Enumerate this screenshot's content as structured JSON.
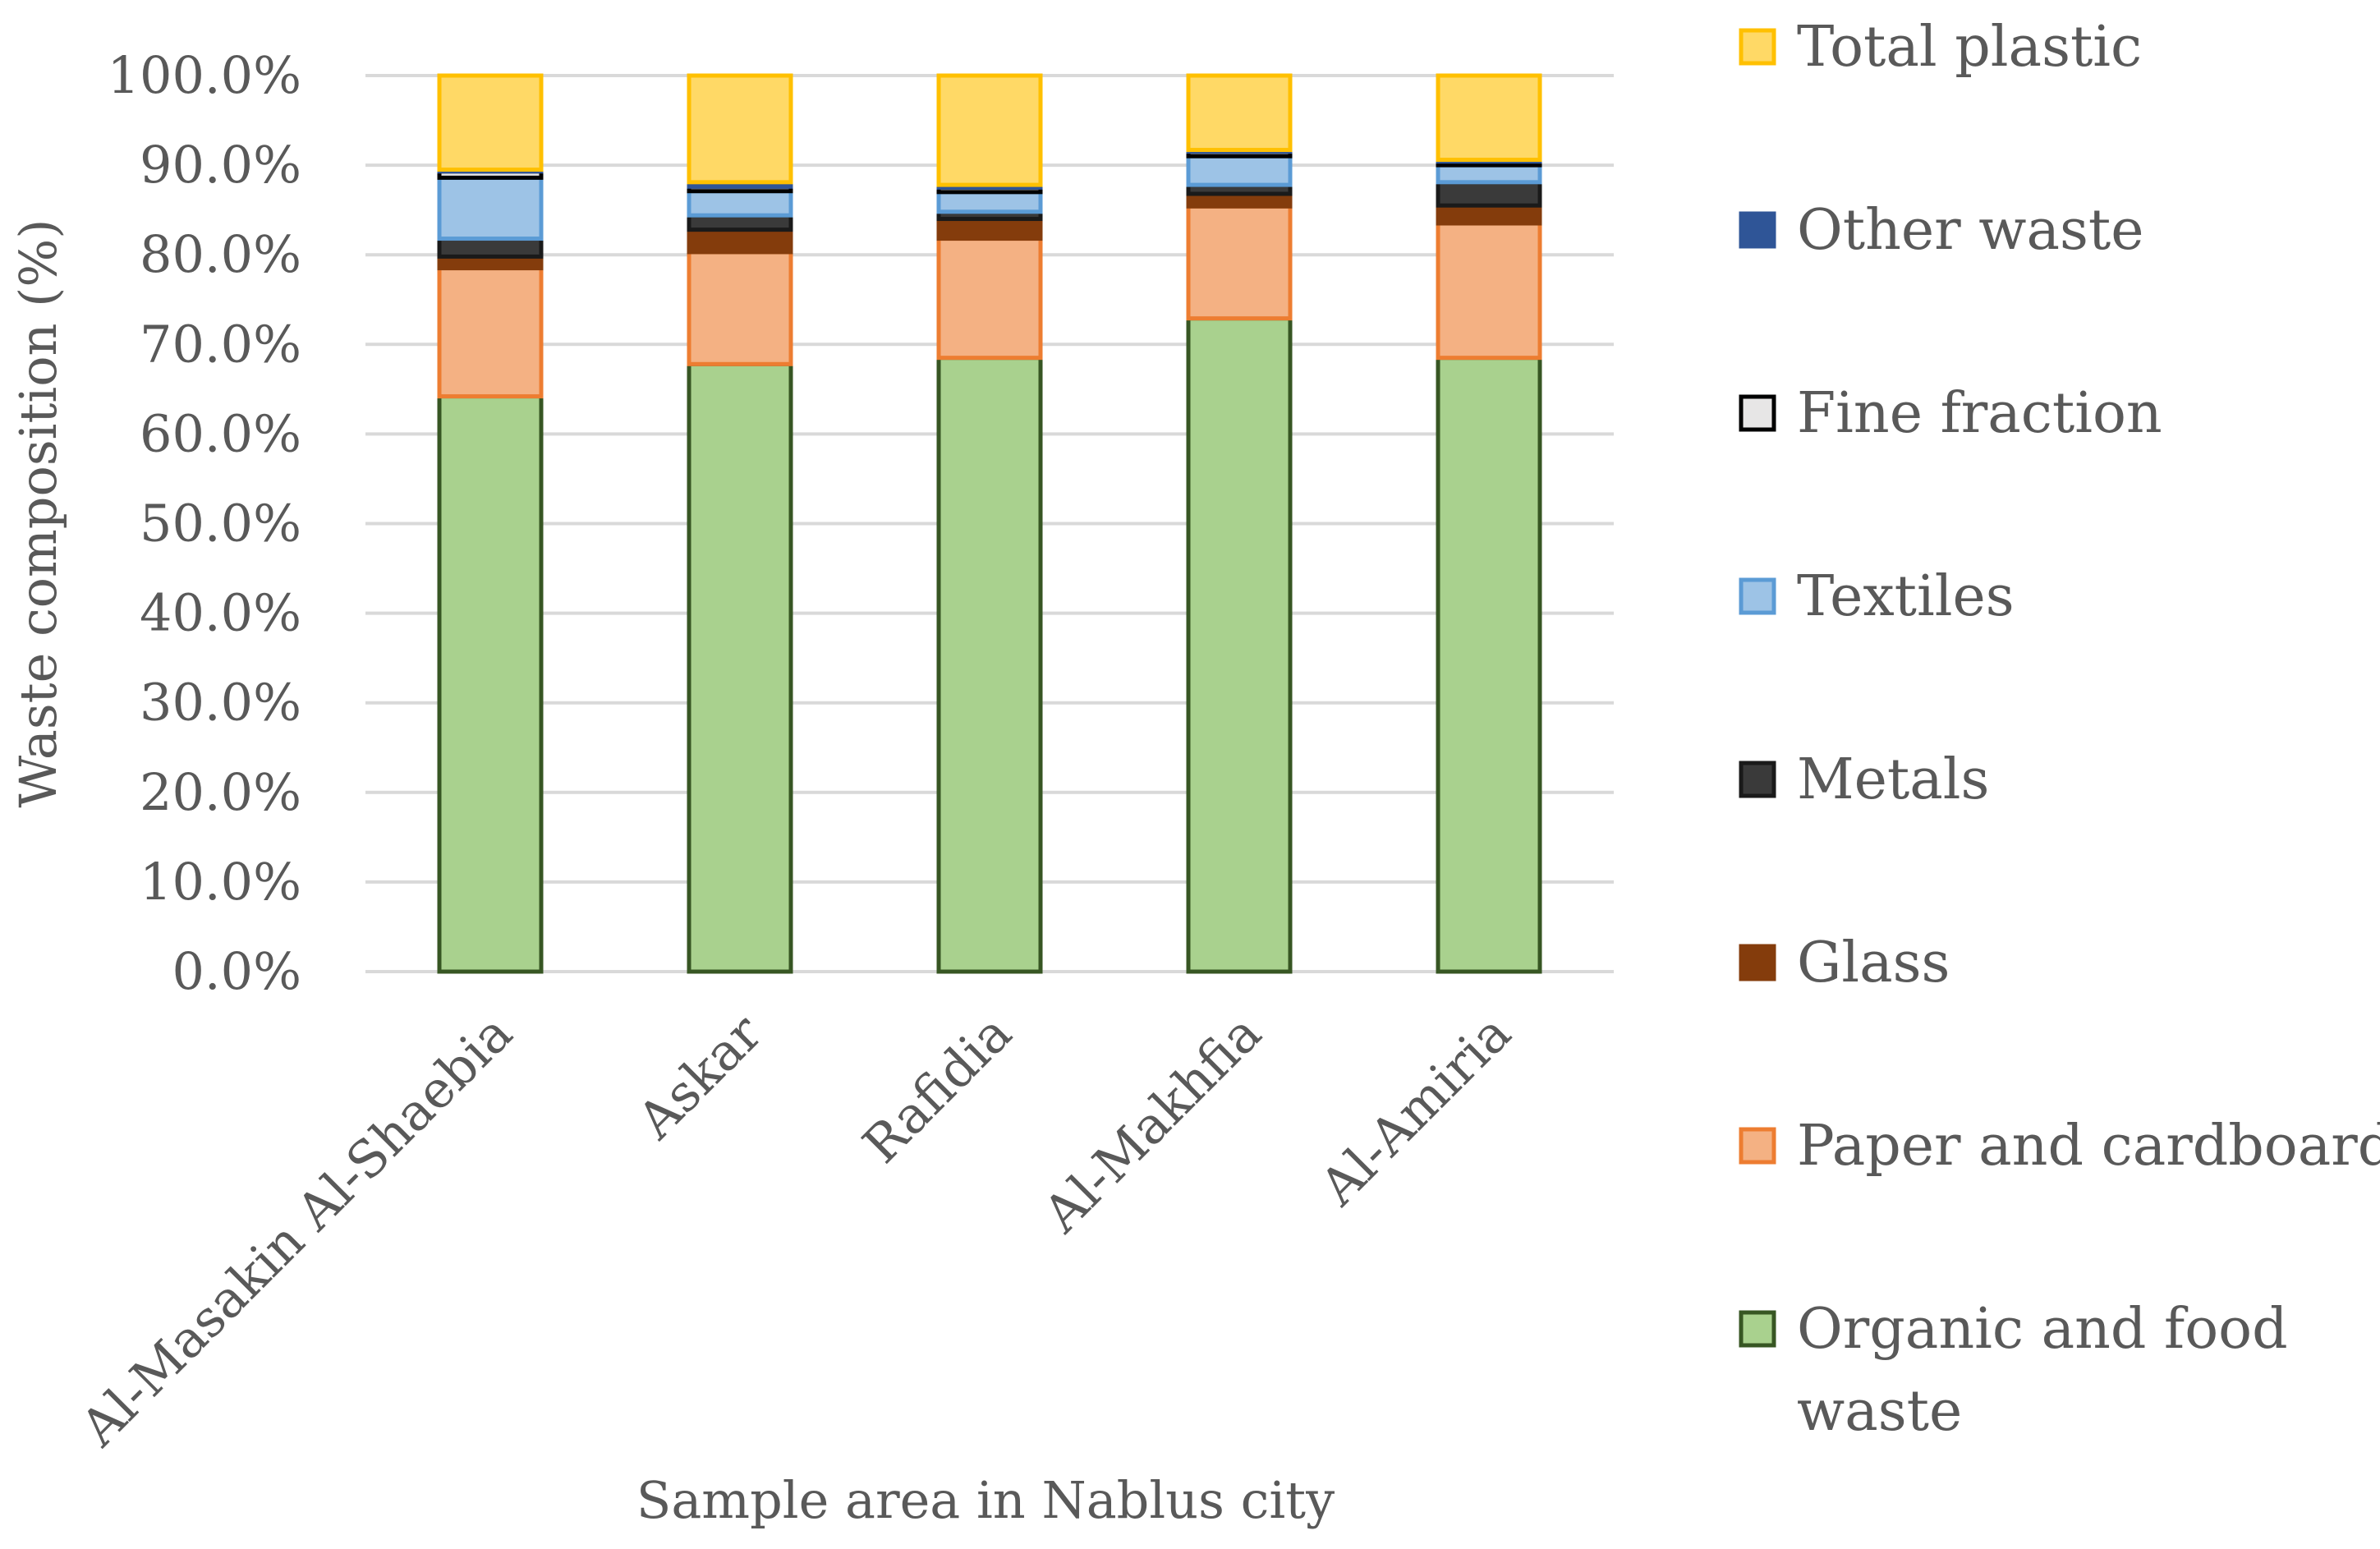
{
  "chart_data": {
    "type": "bar",
    "stacked": true,
    "title": "",
    "xlabel": "Sample area in Nablus city",
    "ylabel": "Waste composition (%)",
    "ylim": [
      0,
      100
    ],
    "ytick_step": 10,
    "ytick_labels": [
      "0.0%",
      "10.0%",
      "20.0%",
      "30.0%",
      "40.0%",
      "50.0%",
      "60.0%",
      "70.0%",
      "80.0%",
      "90.0%",
      "100.0%"
    ],
    "grid": true,
    "legend_position": "right",
    "categories": [
      "Al-Masakin Al-Shaebia",
      "Askar",
      "Rafidia",
      "Al-Makhfia",
      "Al-Amiria"
    ],
    "series": [
      {
        "name": "Organic and food waste",
        "color": "#a9d18e",
        "edge": "#375623",
        "values": [
          64.2,
          67.8,
          68.5,
          72.9,
          68.5
        ]
      },
      {
        "name": "Paper and cardboard",
        "color": "#f4b183",
        "edge": "#ed7d31",
        "values": [
          14.3,
          12.5,
          13.3,
          12.5,
          15.0
        ]
      },
      {
        "name": "Glass",
        "color": "#843c0c",
        "edge": "#843c0c",
        "values": [
          1.3,
          2.5,
          2.2,
          1.4,
          2.0
        ]
      },
      {
        "name": "Metals",
        "color": "#3a3a3a",
        "edge": "#1a1a1a",
        "values": [
          2.0,
          1.6,
          0.8,
          1.0,
          2.6
        ]
      },
      {
        "name": "Textiles",
        "color": "#9dc3e6",
        "edge": "#5b9bd5",
        "values": [
          6.8,
          2.7,
          2.2,
          3.2,
          1.9
        ]
      },
      {
        "name": "Fine fraction",
        "color": "#e7e6e6",
        "edge": "#000000",
        "values": [
          0.7,
          0.5,
          0.5,
          0.5,
          0.4
        ]
      },
      {
        "name": "Other waste",
        "color": "#2f5597",
        "edge": "#2f5597",
        "values": [
          0.2,
          0.5,
          0.3,
          0.2,
          0.2
        ]
      },
      {
        "name": "Total plastic",
        "color": "#ffd966",
        "edge": "#ffc000",
        "values": [
          10.5,
          11.9,
          12.2,
          8.3,
          9.4
        ]
      }
    ],
    "legend_order": [
      "Total plastic",
      "Other waste",
      "Fine fraction",
      "Textiles",
      "Metals",
      "Glass",
      "Paper and cardboard",
      "Organic and food waste"
    ]
  }
}
